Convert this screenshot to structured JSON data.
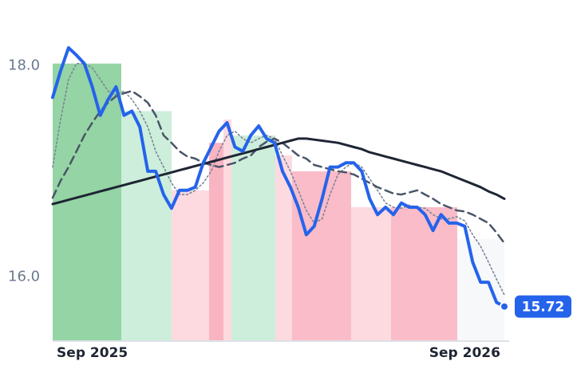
{
  "chart_data": {
    "type": "line",
    "categories": [
      null,
      null,
      null,
      null,
      null,
      "Sep 2025",
      null,
      null,
      null,
      null,
      null,
      null,
      null,
      null,
      null,
      null,
      null,
      null,
      null,
      null,
      null,
      null,
      null,
      null,
      null,
      null,
      null,
      null,
      null,
      null,
      null,
      null,
      null,
      null,
      null,
      null,
      null,
      null,
      null,
      null,
      null,
      null,
      null,
      null,
      null,
      null,
      null,
      null,
      null,
      null,
      null,
      null,
      "Sep 2026",
      null,
      null,
      null,
      null,
      null
    ],
    "series": [
      {
        "color": "#2563eb",
        "values": [
          17.7,
          17.95,
          18.17,
          18.1,
          18.02,
          17.8,
          17.53,
          17.68,
          17.8,
          17.53,
          17.57,
          17.42,
          17.0,
          17.0,
          16.78,
          16.65,
          16.82,
          16.82,
          16.85,
          17.08,
          17.23,
          17.38,
          17.46,
          17.23,
          17.19,
          17.34,
          17.43,
          17.31,
          17.27,
          17.0,
          16.85,
          16.66,
          16.4,
          16.48,
          16.74,
          17.04,
          17.04,
          17.08,
          17.08,
          17.0,
          16.74,
          16.59,
          16.66,
          16.59,
          16.7,
          16.66,
          16.66,
          16.59,
          16.44,
          16.59,
          16.51,
          16.51,
          16.48,
          16.14,
          15.95,
          15.95,
          15.76,
          15.72
        ]
      },
      {
        "color": "#1e2533",
        "values": [
          16.69,
          16.71,
          16.73,
          16.75,
          16.77,
          16.79,
          16.81,
          16.83,
          16.85,
          16.87,
          16.89,
          16.91,
          16.93,
          16.95,
          16.97,
          16.99,
          17.01,
          17.03,
          17.05,
          17.07,
          17.09,
          17.11,
          17.13,
          17.15,
          17.17,
          17.19,
          17.21,
          17.23,
          17.25,
          17.27,
          17.29,
          17.31,
          17.31,
          17.3,
          17.29,
          17.28,
          17.27,
          17.25,
          17.23,
          17.21,
          17.18,
          17.16,
          17.14,
          17.12,
          17.1,
          17.08,
          17.06,
          17.04,
          17.02,
          17.0,
          16.97,
          16.94,
          16.91,
          16.88,
          16.85,
          16.81,
          16.78,
          16.74
        ]
      },
      {
        "color": "#4a5568",
        "values": [
          16.75,
          16.91,
          17.04,
          17.19,
          17.34,
          17.46,
          17.57,
          17.65,
          17.71,
          17.74,
          17.76,
          17.71,
          17.65,
          17.53,
          17.34,
          17.27,
          17.19,
          17.14,
          17.12,
          17.08,
          17.06,
          17.04,
          17.06,
          17.08,
          17.12,
          17.15,
          17.23,
          17.28,
          17.31,
          17.27,
          17.21,
          17.15,
          17.12,
          17.06,
          17.04,
          17.02,
          17.0,
          16.99,
          16.97,
          16.93,
          16.89,
          16.85,
          16.82,
          16.79,
          16.78,
          16.8,
          16.82,
          16.78,
          16.74,
          16.69,
          16.66,
          16.63,
          16.62,
          16.59,
          16.55,
          16.51,
          16.42,
          16.32
        ]
      },
      {
        "color": "#7a8596",
        "values": [
          17.04,
          17.49,
          17.87,
          18.02,
          18.02,
          17.98,
          17.87,
          17.76,
          17.72,
          17.76,
          17.68,
          17.57,
          17.42,
          17.19,
          17.04,
          16.89,
          16.78,
          16.78,
          16.82,
          16.89,
          17.0,
          17.19,
          17.34,
          17.38,
          17.31,
          17.27,
          17.31,
          17.34,
          17.31,
          17.15,
          17.0,
          16.82,
          16.63,
          16.51,
          16.55,
          16.78,
          16.97,
          17.04,
          17.08,
          17.04,
          16.93,
          16.82,
          16.7,
          16.66,
          16.65,
          16.68,
          16.66,
          16.65,
          16.59,
          16.55,
          16.55,
          16.57,
          16.53,
          16.4,
          16.29,
          16.14,
          15.98,
          15.83
        ]
      }
    ],
    "bands": [
      {
        "from": 0,
        "to": 8.66,
        "level": 18.02,
        "color": "#95d4a4"
      },
      {
        "from": 8.66,
        "to": 15.0,
        "level": 17.57,
        "color": "#cdeedb"
      },
      {
        "from": 15.0,
        "to": 19.74,
        "level": 16.82,
        "color": "#fdd9e0"
      },
      {
        "from": 19.74,
        "to": 21.55,
        "level": 17.27,
        "color": "#f9b4c2"
      },
      {
        "from": 21.55,
        "to": 22.56,
        "level": 17.49,
        "color": "#fdd9e0"
      },
      {
        "from": 22.56,
        "to": 28.1,
        "level": 17.34,
        "color": "#cdeedb"
      },
      {
        "from": 28.1,
        "to": 30.2,
        "level": 17.15,
        "color": "#fdd9e0"
      },
      {
        "from": 30.2,
        "to": 37.66,
        "level": 17.0,
        "color": "#f9bcc8"
      },
      {
        "from": 37.66,
        "to": 42.7,
        "level": 16.66,
        "color": "#fdd9e0"
      },
      {
        "from": 42.7,
        "to": 51.06,
        "level": 16.66,
        "color": "#f9bcc8"
      },
      {
        "from": 51.06,
        "to": 57,
        "level": 16.36,
        "color": "#f6f8fa"
      }
    ],
    "ylim": [
      15.4,
      18.32
    ],
    "yticks": [
      {
        "value": 16,
        "label": "16.0"
      },
      {
        "value": 18,
        "label": "18.0"
      }
    ]
  }
}
